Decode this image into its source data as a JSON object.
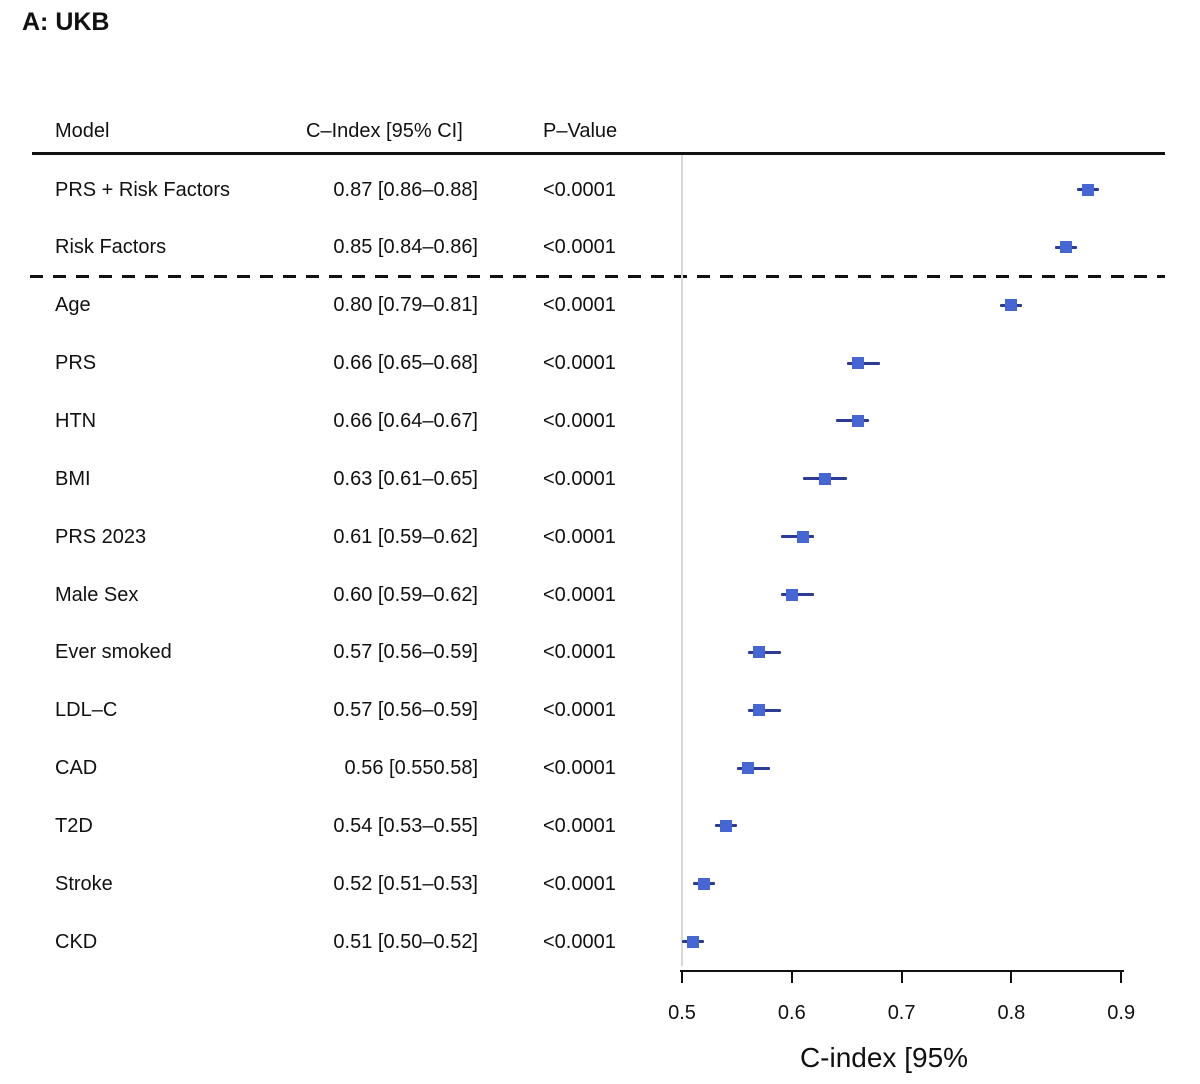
{
  "title": "A: UKB",
  "table": {
    "headers": {
      "model": "Model",
      "cindex": "C–Index [95% CI]",
      "pvalue": "P–Value"
    },
    "rows": [
      {
        "model": "PRS + Risk Factors",
        "cindex": "0.87 [0.86–0.88]",
        "pvalue": "<0.0001"
      },
      {
        "model": "Risk Factors",
        "cindex": "0.85 [0.84–0.86]",
        "pvalue": "<0.0001"
      },
      {
        "model": "Age",
        "cindex": "0.80 [0.79–0.81]",
        "pvalue": "<0.0001"
      },
      {
        "model": "PRS",
        "cindex": "0.66 [0.65–0.68]",
        "pvalue": "<0.0001"
      },
      {
        "model": "HTN",
        "cindex": "0.66 [0.64–0.67]",
        "pvalue": "<0.0001"
      },
      {
        "model": "BMI",
        "cindex": "0.63 [0.61–0.65]",
        "pvalue": "<0.0001"
      },
      {
        "model": "PRS 2023",
        "cindex": "0.61 [0.59–0.62]",
        "pvalue": "<0.0001"
      },
      {
        "model": "Male Sex",
        "cindex": "0.60 [0.59–0.62]",
        "pvalue": "<0.0001"
      },
      {
        "model": "Ever smoked",
        "cindex": "0.57 [0.56–0.59]",
        "pvalue": "<0.0001"
      },
      {
        "model": "LDL–C",
        "cindex": "0.57 [0.56–0.59]",
        "pvalue": "<0.0001"
      },
      {
        "model": "CAD",
        "cindex": "0.56 [0.550.58]",
        "pvalue": "<0.0001"
      },
      {
        "model": "T2D",
        "cindex": "0.54 [0.53–0.55]",
        "pvalue": "<0.0001"
      },
      {
        "model": "Stroke",
        "cindex": "0.52 [0.51–0.53]",
        "pvalue": "<0.0001"
      },
      {
        "model": "CKD",
        "cindex": "0.51 [0.50–0.52]",
        "pvalue": "<0.0001"
      }
    ]
  },
  "chart_data": {
    "type": "scatter",
    "variant": "forest-plot",
    "title": "A: UKB",
    "categories": [
      "PRS + Risk Factors",
      "Risk Factors",
      "Age",
      "PRS",
      "HTN",
      "BMI",
      "PRS 2023",
      "Male Sex",
      "Ever smoked",
      "LDL–C",
      "CAD",
      "T2D",
      "Stroke",
      "CKD"
    ],
    "series": [
      {
        "name": "C-Index [95% CI]",
        "points": [
          {
            "est": 0.87,
            "lo": 0.86,
            "hi": 0.88
          },
          {
            "est": 0.85,
            "lo": 0.84,
            "hi": 0.86
          },
          {
            "est": 0.8,
            "lo": 0.79,
            "hi": 0.81
          },
          {
            "est": 0.66,
            "lo": 0.65,
            "hi": 0.68
          },
          {
            "est": 0.66,
            "lo": 0.64,
            "hi": 0.67
          },
          {
            "est": 0.63,
            "lo": 0.61,
            "hi": 0.65
          },
          {
            "est": 0.61,
            "lo": 0.59,
            "hi": 0.62
          },
          {
            "est": 0.6,
            "lo": 0.59,
            "hi": 0.62
          },
          {
            "est": 0.57,
            "lo": 0.56,
            "hi": 0.59
          },
          {
            "est": 0.57,
            "lo": 0.56,
            "hi": 0.59
          },
          {
            "est": 0.56,
            "lo": 0.55,
            "hi": 0.58
          },
          {
            "est": 0.54,
            "lo": 0.53,
            "hi": 0.55
          },
          {
            "est": 0.52,
            "lo": 0.51,
            "hi": 0.53
          },
          {
            "est": 0.51,
            "lo": 0.5,
            "hi": 0.52
          }
        ]
      }
    ],
    "xlabel": "C-index [95%",
    "xticks": [
      "0.5",
      "0.6",
      "0.7",
      "0.8",
      "0.9"
    ],
    "xtick_values": [
      0.5,
      0.6,
      0.7,
      0.8,
      0.9
    ],
    "xlim": [
      0.5,
      0.9
    ],
    "reference_line_x": 0.5,
    "dashed_separator_after_row": 2,
    "grid": false,
    "legend": false,
    "marker_shape": "square",
    "marker_color": "#4666d3",
    "whisker_color": "#2c3b94",
    "reference_line_color": "#d8d8d8",
    "line_color": "#111111"
  }
}
